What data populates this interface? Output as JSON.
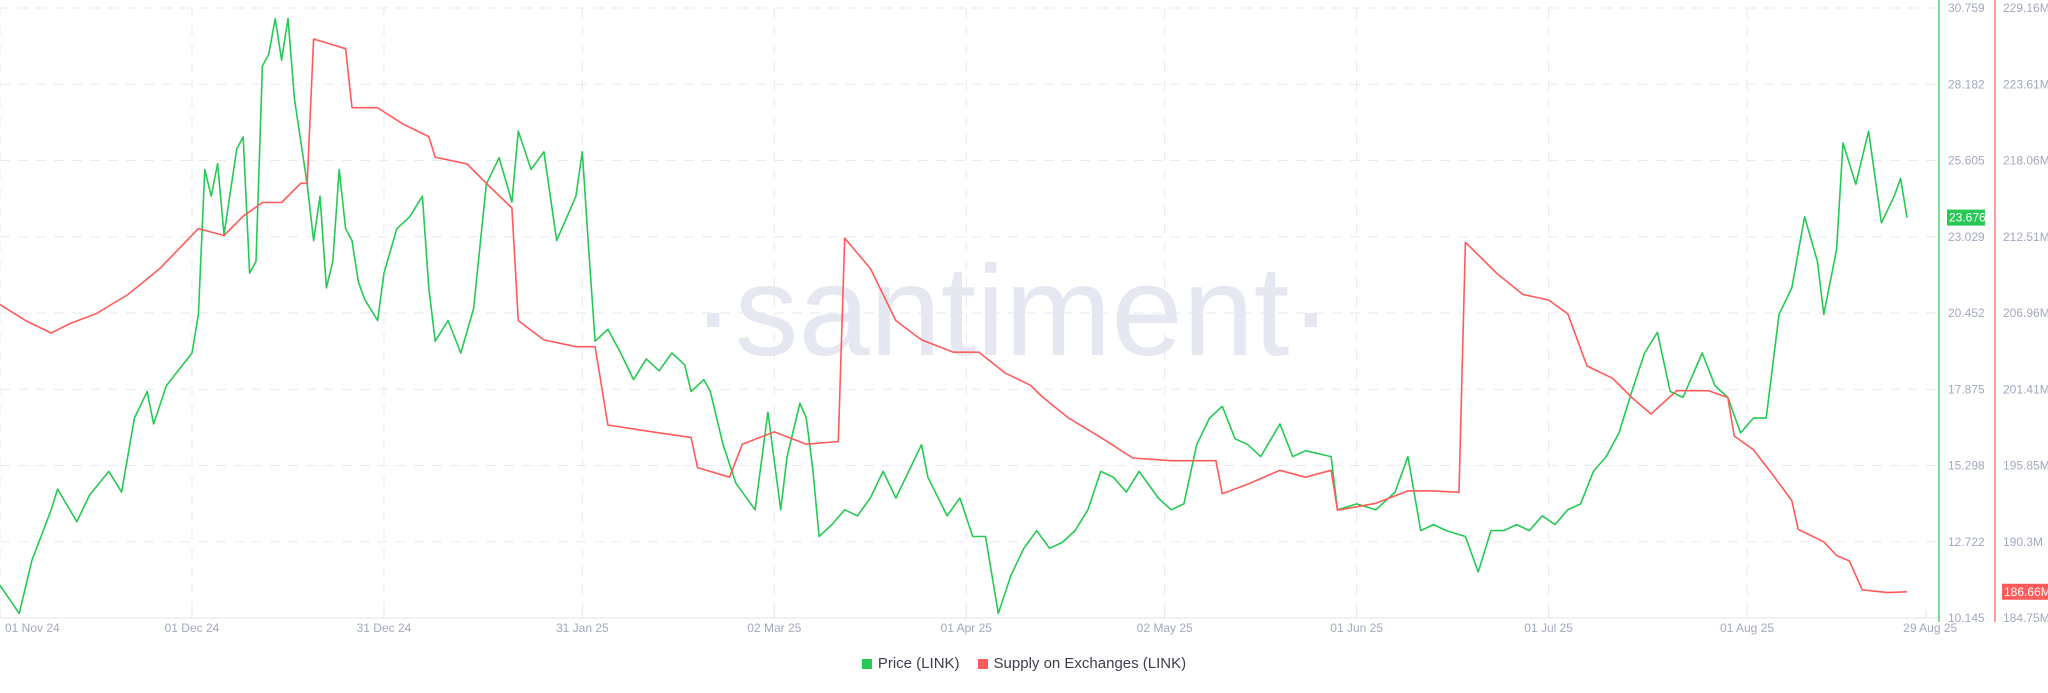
{
  "chart_data": {
    "type": "line",
    "watermark": "·santiment·",
    "x_ticks": [
      "01 Nov 24",
      "01 Dec 24",
      "31 Dec 24",
      "31 Jan 25",
      "02 Mar 25",
      "01 Apr 25",
      "02 May 25",
      "01 Jun 25",
      "01 Jul 25",
      "01 Aug 25",
      "29 Aug 25"
    ],
    "x_tick_dates": [
      "2024-11-01",
      "2024-12-01",
      "2024-12-31",
      "2025-01-31",
      "2025-03-02",
      "2025-04-01",
      "2025-05-02",
      "2025-06-01",
      "2025-07-01",
      "2025-08-01",
      "2025-08-29"
    ],
    "xlim": [
      "2024-11-01",
      "2025-08-31"
    ],
    "grid": true,
    "legend_position": "bottom",
    "axes": {
      "price": {
        "position": "right",
        "ylim": [
          10.145,
          30.759
        ],
        "ticks": [
          "30.759",
          "28.182",
          "25.605",
          "23.029",
          "20.452",
          "17.875",
          "15.298",
          "12.722",
          "10.145"
        ],
        "last_value": "23.676",
        "color": "#26c953"
      },
      "supply": {
        "position": "right-outer",
        "ylim": [
          184.75,
          229.16
        ],
        "ticks": [
          "229.16M",
          "223.61M",
          "218.06M",
          "212.51M",
          "206.96M",
          "201.41M",
          "195.85M",
          "190.3M",
          "184.75M"
        ],
        "last_value": "186.66M",
        "color": "#ff5b5b"
      }
    },
    "series": [
      {
        "name": "Price (LINK)",
        "axis": "price",
        "color": "#26c953",
        "points": [
          [
            "2024-11-01",
            11.25
          ],
          [
            "2024-11-04",
            10.3
          ],
          [
            "2024-11-06",
            12.1
          ],
          [
            "2024-11-09",
            13.8
          ],
          [
            "2024-11-10",
            14.5
          ],
          [
            "2024-11-13",
            13.4
          ],
          [
            "2024-11-15",
            14.3
          ],
          [
            "2024-11-18",
            15.1
          ],
          [
            "2024-11-20",
            14.4
          ],
          [
            "2024-11-22",
            16.9
          ],
          [
            "2024-11-24",
            17.8
          ],
          [
            "2024-11-25",
            16.7
          ],
          [
            "2024-11-27",
            18.0
          ],
          [
            "2024-12-01",
            19.1
          ],
          [
            "2024-12-02",
            20.4
          ],
          [
            "2024-12-03",
            25.3
          ],
          [
            "2024-12-04",
            24.4
          ],
          [
            "2024-12-05",
            25.5
          ],
          [
            "2024-12-06",
            23.1
          ],
          [
            "2024-12-08",
            26.0
          ],
          [
            "2024-12-09",
            26.4
          ],
          [
            "2024-12-10",
            21.8
          ],
          [
            "2024-12-11",
            22.2
          ],
          [
            "2024-12-12",
            28.8
          ],
          [
            "2024-12-13",
            29.2
          ],
          [
            "2024-12-14",
            30.4
          ],
          [
            "2024-12-15",
            29.0
          ],
          [
            "2024-12-16",
            30.4
          ],
          [
            "2024-12-17",
            27.7
          ],
          [
            "2024-12-19",
            24.8
          ],
          [
            "2024-12-20",
            22.9
          ],
          [
            "2024-12-21",
            24.4
          ],
          [
            "2024-12-22",
            21.3
          ],
          [
            "2024-12-23",
            22.2
          ],
          [
            "2024-12-24",
            25.3
          ],
          [
            "2024-12-25",
            23.3
          ],
          [
            "2024-12-26",
            22.9
          ],
          [
            "2024-12-27",
            21.5
          ],
          [
            "2024-12-28",
            20.9
          ],
          [
            "2024-12-30",
            20.2
          ],
          [
            "2024-12-31",
            21.8
          ],
          [
            "2025-01-02",
            23.3
          ],
          [
            "2025-01-04",
            23.7
          ],
          [
            "2025-01-06",
            24.4
          ],
          [
            "2025-01-07",
            21.3
          ],
          [
            "2025-01-08",
            19.5
          ],
          [
            "2025-01-10",
            20.2
          ],
          [
            "2025-01-12",
            19.1
          ],
          [
            "2025-01-14",
            20.6
          ],
          [
            "2025-01-16",
            24.8
          ],
          [
            "2025-01-18",
            25.7
          ],
          [
            "2025-01-20",
            24.2
          ],
          [
            "2025-01-21",
            26.6
          ],
          [
            "2025-01-23",
            25.3
          ],
          [
            "2025-01-25",
            25.9
          ],
          [
            "2025-01-27",
            22.9
          ],
          [
            "2025-01-30",
            24.4
          ],
          [
            "2025-01-31",
            25.9
          ],
          [
            "2025-02-01",
            22.6
          ],
          [
            "2025-02-02",
            19.5
          ],
          [
            "2025-02-04",
            19.9
          ],
          [
            "2025-02-06",
            19.1
          ],
          [
            "2025-02-08",
            18.2
          ],
          [
            "2025-02-10",
            18.9
          ],
          [
            "2025-02-12",
            18.5
          ],
          [
            "2025-02-14",
            19.1
          ],
          [
            "2025-02-16",
            18.7
          ],
          [
            "2025-02-17",
            17.8
          ],
          [
            "2025-02-19",
            18.2
          ],
          [
            "2025-02-20",
            17.8
          ],
          [
            "2025-02-22",
            16.0
          ],
          [
            "2025-02-24",
            14.7
          ],
          [
            "2025-02-27",
            13.8
          ],
          [
            "2025-03-01",
            17.1
          ],
          [
            "2025-03-03",
            13.8
          ],
          [
            "2025-03-04",
            15.6
          ],
          [
            "2025-03-06",
            17.4
          ],
          [
            "2025-03-07",
            16.9
          ],
          [
            "2025-03-08",
            15.2
          ],
          [
            "2025-03-09",
            12.9
          ],
          [
            "2025-03-11",
            13.3
          ],
          [
            "2025-03-13",
            13.8
          ],
          [
            "2025-03-15",
            13.6
          ],
          [
            "2025-03-17",
            14.2
          ],
          [
            "2025-03-19",
            15.1
          ],
          [
            "2025-03-21",
            14.2
          ],
          [
            "2025-03-23",
            15.1
          ],
          [
            "2025-03-25",
            16.0
          ],
          [
            "2025-03-26",
            14.9
          ],
          [
            "2025-03-29",
            13.6
          ],
          [
            "2025-03-31",
            14.2
          ],
          [
            "2025-04-02",
            12.9
          ],
          [
            "2025-04-04",
            12.9
          ],
          [
            "2025-04-06",
            10.3
          ],
          [
            "2025-04-08",
            11.6
          ],
          [
            "2025-04-10",
            12.5
          ],
          [
            "2025-04-12",
            13.1
          ],
          [
            "2025-04-14",
            12.5
          ],
          [
            "2025-04-16",
            12.7
          ],
          [
            "2025-04-18",
            13.1
          ],
          [
            "2025-04-20",
            13.8
          ],
          [
            "2025-04-22",
            15.1
          ],
          [
            "2025-04-24",
            14.9
          ],
          [
            "2025-04-26",
            14.4
          ],
          [
            "2025-04-28",
            15.1
          ],
          [
            "2025-05-01",
            14.2
          ],
          [
            "2025-05-03",
            13.8
          ],
          [
            "2025-05-05",
            14.0
          ],
          [
            "2025-05-07",
            16.0
          ],
          [
            "2025-05-09",
            16.9
          ],
          [
            "2025-05-11",
            17.3
          ],
          [
            "2025-05-13",
            16.2
          ],
          [
            "2025-05-15",
            16.0
          ],
          [
            "2025-05-17",
            15.6
          ],
          [
            "2025-05-20",
            16.7
          ],
          [
            "2025-05-22",
            15.6
          ],
          [
            "2025-05-24",
            15.8
          ],
          [
            "2025-05-28",
            15.6
          ],
          [
            "2025-05-29",
            13.8
          ],
          [
            "2025-06-01",
            14.0
          ],
          [
            "2025-06-04",
            13.8
          ],
          [
            "2025-06-07",
            14.4
          ],
          [
            "2025-06-09",
            15.6
          ],
          [
            "2025-06-11",
            13.1
          ],
          [
            "2025-06-13",
            13.3
          ],
          [
            "2025-06-15",
            13.1
          ],
          [
            "2025-06-18",
            12.9
          ],
          [
            "2025-06-20",
            11.7
          ],
          [
            "2025-06-22",
            13.1
          ],
          [
            "2025-06-24",
            13.1
          ],
          [
            "2025-06-26",
            13.3
          ],
          [
            "2025-06-28",
            13.1
          ],
          [
            "2025-06-30",
            13.6
          ],
          [
            "2025-07-02",
            13.3
          ],
          [
            "2025-07-04",
            13.8
          ],
          [
            "2025-07-06",
            14.0
          ],
          [
            "2025-07-08",
            15.1
          ],
          [
            "2025-07-10",
            15.6
          ],
          [
            "2025-07-12",
            16.4
          ],
          [
            "2025-07-14",
            17.8
          ],
          [
            "2025-07-16",
            19.1
          ],
          [
            "2025-07-18",
            19.8
          ],
          [
            "2025-07-20",
            17.8
          ],
          [
            "2025-07-22",
            17.6
          ],
          [
            "2025-07-25",
            19.1
          ],
          [
            "2025-07-27",
            18.0
          ],
          [
            "2025-07-29",
            17.6
          ],
          [
            "2025-07-31",
            16.4
          ],
          [
            "2025-08-02",
            16.9
          ],
          [
            "2025-08-04",
            16.9
          ],
          [
            "2025-08-06",
            20.4
          ],
          [
            "2025-08-08",
            21.3
          ],
          [
            "2025-08-10",
            23.7
          ],
          [
            "2025-08-12",
            22.2
          ],
          [
            "2025-08-13",
            20.4
          ],
          [
            "2025-08-15",
            22.6
          ],
          [
            "2025-08-16",
            26.2
          ],
          [
            "2025-08-18",
            24.8
          ],
          [
            "2025-08-20",
            26.6
          ],
          [
            "2025-08-22",
            23.5
          ],
          [
            "2025-08-24",
            24.4
          ],
          [
            "2025-08-25",
            25.0
          ],
          [
            "2025-08-26",
            23.676
          ]
        ]
      },
      {
        "name": "Supply on Exchanges (LINK)",
        "axis": "supply",
        "color": "#ff5b5b",
        "points": [
          [
            "2024-11-01",
            207.57
          ],
          [
            "2024-11-05",
            206.4
          ],
          [
            "2024-11-09",
            205.5
          ],
          [
            "2024-11-12",
            206.2
          ],
          [
            "2024-11-16",
            206.9
          ],
          [
            "2024-11-21",
            208.3
          ],
          [
            "2024-11-26",
            210.2
          ],
          [
            "2024-12-02",
            213.1
          ],
          [
            "2024-12-06",
            212.6
          ],
          [
            "2024-12-09",
            214.0
          ],
          [
            "2024-12-12",
            215.0
          ],
          [
            "2024-12-15",
            215.0
          ],
          [
            "2024-12-18",
            216.4
          ],
          [
            "2024-12-19",
            216.4
          ],
          [
            "2024-12-20",
            226.9
          ],
          [
            "2024-12-25",
            226.2
          ],
          [
            "2024-12-26",
            221.9
          ],
          [
            "2024-12-30",
            221.9
          ],
          [
            "2025-01-03",
            220.7
          ],
          [
            "2025-01-07",
            219.8
          ],
          [
            "2025-01-08",
            218.3
          ],
          [
            "2025-01-13",
            217.8
          ],
          [
            "2025-01-16",
            216.4
          ],
          [
            "2025-01-20",
            214.6
          ],
          [
            "2025-01-21",
            206.4
          ],
          [
            "2025-01-25",
            205.0
          ],
          [
            "2025-01-30",
            204.5
          ],
          [
            "2025-02-02",
            204.5
          ],
          [
            "2025-02-04",
            198.8
          ],
          [
            "2025-02-11",
            198.3
          ],
          [
            "2025-02-17",
            197.9
          ],
          [
            "2025-02-18",
            195.7
          ],
          [
            "2025-02-23",
            195.0
          ],
          [
            "2025-02-25",
            197.4
          ],
          [
            "2025-03-02",
            198.3
          ],
          [
            "2025-03-07",
            197.4
          ],
          [
            "2025-03-12",
            197.6
          ],
          [
            "2025-03-13",
            212.4
          ],
          [
            "2025-03-17",
            210.2
          ],
          [
            "2025-03-21",
            206.4
          ],
          [
            "2025-03-25",
            205.0
          ],
          [
            "2025-03-30",
            204.1
          ],
          [
            "2025-04-03",
            204.1
          ],
          [
            "2025-04-07",
            202.6
          ],
          [
            "2025-04-11",
            201.7
          ],
          [
            "2025-04-13",
            200.8
          ],
          [
            "2025-04-17",
            199.3
          ],
          [
            "2025-04-22",
            197.9
          ],
          [
            "2025-04-27",
            196.4
          ],
          [
            "2025-05-03",
            196.2
          ],
          [
            "2025-05-10",
            196.2
          ],
          [
            "2025-05-11",
            193.8
          ],
          [
            "2025-05-15",
            194.5
          ],
          [
            "2025-05-20",
            195.5
          ],
          [
            "2025-05-24",
            195.0
          ],
          [
            "2025-05-28",
            195.5
          ],
          [
            "2025-05-29",
            192.6
          ],
          [
            "2025-06-04",
            193.1
          ],
          [
            "2025-06-09",
            194.0
          ],
          [
            "2025-06-13",
            194.0
          ],
          [
            "2025-06-17",
            193.9
          ],
          [
            "2025-06-18",
            212.1
          ],
          [
            "2025-06-23",
            209.8
          ],
          [
            "2025-06-27",
            208.3
          ],
          [
            "2025-07-01",
            207.9
          ],
          [
            "2025-07-04",
            206.9
          ],
          [
            "2025-07-07",
            203.1
          ],
          [
            "2025-07-11",
            202.2
          ],
          [
            "2025-07-14",
            200.8
          ],
          [
            "2025-07-17",
            199.6
          ],
          [
            "2025-07-21",
            201.3
          ],
          [
            "2025-07-26",
            201.3
          ],
          [
            "2025-07-29",
            200.8
          ],
          [
            "2025-07-30",
            198.0
          ],
          [
            "2025-08-02",
            197.0
          ],
          [
            "2025-08-05",
            195.2
          ],
          [
            "2025-08-08",
            193.3
          ],
          [
            "2025-08-09",
            191.2
          ],
          [
            "2025-08-13",
            190.3
          ],
          [
            "2025-08-15",
            189.3
          ],
          [
            "2025-08-17",
            188.9
          ],
          [
            "2025-08-19",
            186.8
          ],
          [
            "2025-08-23",
            186.6
          ],
          [
            "2025-08-26",
            186.66
          ]
        ]
      }
    ]
  },
  "legend": [
    {
      "label": "Price (LINK)",
      "color": "#26c953"
    },
    {
      "label": "Supply on Exchanges (LINK)",
      "color": "#ff5b5b"
    }
  ]
}
